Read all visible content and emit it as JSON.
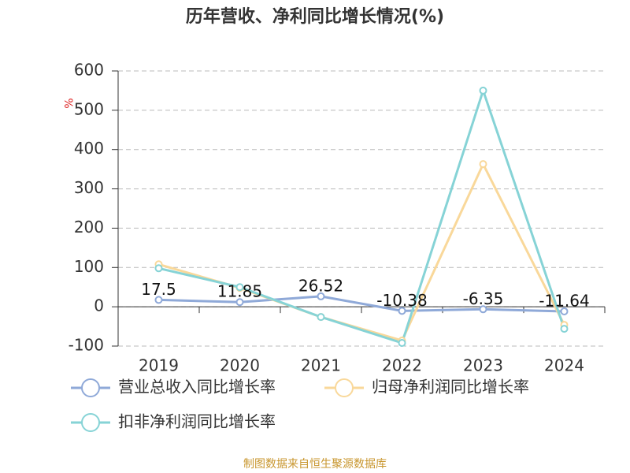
{
  "chart_data": {
    "type": "line",
    "title": "历年营收、净利同比增长情况(%)",
    "y_label": "%",
    "categories": [
      "2019",
      "2020",
      "2021",
      "2022",
      "2023",
      "2024"
    ],
    "series": [
      {
        "name": "营业总收入同比增长率",
        "color": "#8fa9d8",
        "values": [
          17.5,
          11.85,
          26.52,
          -10.38,
          -6.35,
          -11.64
        ],
        "data_labels": true
      },
      {
        "name": "归母净利润同比增长率",
        "color": "#f9d89a",
        "values": [
          108,
          48,
          -26,
          -86,
          363,
          -46
        ]
      },
      {
        "name": "扣非净利润同比增长率",
        "color": "#86d3d6",
        "values": [
          98,
          50,
          -26,
          -92,
          550,
          -56
        ]
      }
    ],
    "ylim": [
      -100,
      600
    ],
    "yticks": [
      -100,
      0,
      100,
      200,
      300,
      400,
      500,
      600
    ],
    "grid": true,
    "source": "制图数据来自恒生聚源数据库"
  }
}
